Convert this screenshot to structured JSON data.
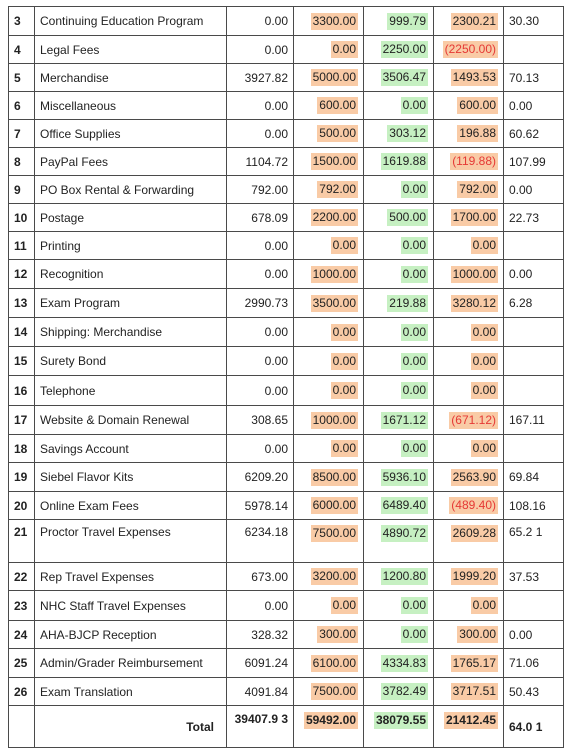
{
  "rows": [
    {
      "num": "3",
      "desc": "Continuing Education Program",
      "prev": "0.00",
      "budget": "3300.00",
      "actual": "999.79",
      "remaining": "2300.21",
      "neg": false,
      "pct": "30.30",
      "h": 29
    },
    {
      "num": "4",
      "desc": "Legal Fees",
      "prev": "0.00",
      "budget": "0.00",
      "actual": "2250.00",
      "remaining": "(2250.00)",
      "neg": true,
      "pct": "",
      "h": 28
    },
    {
      "num": "5",
      "desc": "Merchandise",
      "prev": "3927.82",
      "budget": "5000.00",
      "actual": "3506.47",
      "remaining": "1493.53",
      "neg": false,
      "pct": "70.13",
      "h": 28
    },
    {
      "num": "6",
      "desc": "Miscellaneous",
      "prev": "0.00",
      "budget": "600.00",
      "actual": "0.00",
      "remaining": "600.00",
      "neg": false,
      "pct": "0.00",
      "h": 28
    },
    {
      "num": "7",
      "desc": "Office Supplies",
      "prev": "0.00",
      "budget": "500.00",
      "actual": "303.12",
      "remaining": "196.88",
      "neg": false,
      "pct": "60.62",
      "h": 28
    },
    {
      "num": "8",
      "desc": "PayPal Fees",
      "prev": "1104.72",
      "budget": "1500.00",
      "actual": "1619.88",
      "remaining": "(119.88)",
      "neg": true,
      "pct": "107.99",
      "h": 28
    },
    {
      "num": "9",
      "desc": "PO Box Rental & Forwarding",
      "prev": "792.00",
      "budget": "792.00",
      "actual": "0.00",
      "remaining": "792.00",
      "neg": false,
      "pct": "0.00",
      "h": 28
    },
    {
      "num": "10",
      "desc": "Postage",
      "prev": "678.09",
      "budget": "2200.00",
      "actual": "500.00",
      "remaining": "1700.00",
      "neg": false,
      "pct": "22.73",
      "h": 28
    },
    {
      "num": "11",
      "desc": "Printing",
      "prev": "0.00",
      "budget": "0.00",
      "actual": "0.00",
      "remaining": "0.00",
      "neg": false,
      "pct": "",
      "h": 28
    },
    {
      "num": "12",
      "desc": "Recognition",
      "prev": "0.00",
      "budget": "1000.00",
      "actual": "0.00",
      "remaining": "1000.00",
      "neg": false,
      "pct": "0.00",
      "h": 29
    },
    {
      "num": "13",
      "desc": "Exam Program",
      "prev": "2990.73",
      "budget": "3500.00",
      "actual": "219.88",
      "remaining": "3280.12",
      "neg": false,
      "pct": "6.28",
      "h": 29
    },
    {
      "num": "14",
      "desc": "Shipping: Merchandise",
      "prev": "0.00",
      "budget": "0.00",
      "actual": "0.00",
      "remaining": "0.00",
      "neg": false,
      "pct": "",
      "h": 29
    },
    {
      "num": "15",
      "desc": "Surety Bond",
      "prev": "0.00",
      "budget": "0.00",
      "actual": "0.00",
      "remaining": "0.00",
      "neg": false,
      "pct": "",
      "h": 29
    },
    {
      "num": "16",
      "desc": "Telephone",
      "prev": "0.00",
      "budget": "0.00",
      "actual": "0.00",
      "remaining": "0.00",
      "neg": false,
      "pct": "",
      "h": 30
    },
    {
      "num": "17",
      "desc": "Website & Domain Renewal",
      "prev": "308.65",
      "budget": "1000.00",
      "actual": "1671.12",
      "remaining": "(671.12)",
      "neg": true,
      "pct": "167.11",
      "h": 29
    },
    {
      "num": "18",
      "desc": "Savings Account",
      "prev": "0.00",
      "budget": "0.00",
      "actual": "0.00",
      "remaining": "0.00",
      "neg": false,
      "pct": "",
      "h": 28
    },
    {
      "num": "19",
      "desc": "Siebel Flavor Kits",
      "prev": "6209.20",
      "budget": "8500.00",
      "actual": "5936.10",
      "remaining": "2563.90",
      "neg": false,
      "pct": "69.84",
      "h": 29
    },
    {
      "num": "20",
      "desc": "Online Exam Fees",
      "prev": "5978.14",
      "budget": "6000.00",
      "actual": "6489.40",
      "remaining": "(489.40)",
      "neg": true,
      "pct": "108.16",
      "h": 28
    },
    {
      "num": "21",
      "desc": "Proctor Travel Expenses",
      "prev": "6234.18",
      "budget": "7500.00",
      "actual": "4890.72",
      "remaining": "2609.28",
      "neg": false,
      "pct": "65.2 1",
      "h": 43,
      "tall": true
    },
    {
      "num": "22",
      "desc": "Rep Travel Expenses",
      "prev": "673.00",
      "budget": "3200.00",
      "actual": "1200.80",
      "remaining": "1999.20",
      "neg": false,
      "pct": "37.53",
      "h": 28
    },
    {
      "num": "23",
      "desc": "NHC Staff Travel Expenses",
      "prev": "0.00",
      "budget": "0.00",
      "actual": "0.00",
      "remaining": "0.00",
      "neg": false,
      "pct": "",
      "h": 30
    },
    {
      "num": "24",
      "desc": "AHA-BJCP Reception",
      "prev": "328.32",
      "budget": "300.00",
      "actual": "0.00",
      "remaining": "300.00",
      "neg": false,
      "pct": "0.00",
      "h": 28
    },
    {
      "num": "25",
      "desc": "Admin/Grader Reimbursement",
      "prev": "6091.24",
      "budget": "6100.00",
      "actual": "4334.83",
      "remaining": "1765.17",
      "neg": false,
      "pct": "71.06",
      "h": 29
    },
    {
      "num": "26",
      "desc": "Exam Translation",
      "prev": "4091.84",
      "budget": "7500.00",
      "actual": "3782.49",
      "remaining": "3717.51",
      "neg": false,
      "pct": "50.43",
      "h": 28
    }
  ],
  "total": {
    "label": "Total",
    "prev": "39407.9 3",
    "budget": "59492.00",
    "actual": "38079.55",
    "remaining": "21412.45",
    "pct": "64.0 1",
    "h": 42
  },
  "colors": {
    "budget_highlight": "#f9cba6",
    "actual_highlight": "#c6f0c2",
    "negative_text": "#e53935"
  }
}
